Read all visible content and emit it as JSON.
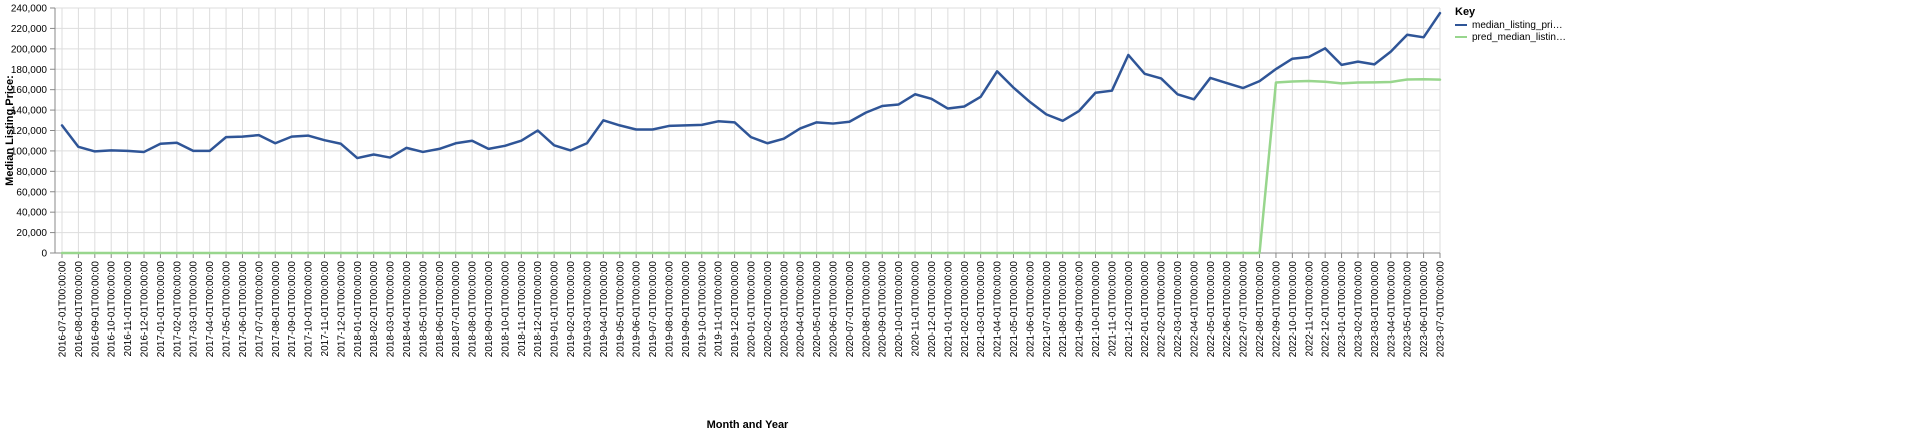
{
  "chart_data": {
    "type": "line",
    "xlabel": "Month and Year",
    "ylabel": "Median Listing Price:",
    "ylim": [
      0,
      240000
    ],
    "y_ticks": [
      0,
      20000,
      40000,
      60000,
      80000,
      100000,
      120000,
      140000,
      160000,
      180000,
      200000,
      220000,
      240000
    ],
    "y_tick_labels": [
      "0",
      "20,000",
      "40,000",
      "60,000",
      "80,000",
      "100,000",
      "120,000",
      "140,000",
      "160,000",
      "180,000",
      "200,000",
      "220,000",
      "240,000"
    ],
    "grid": true,
    "legend": {
      "title": "Key",
      "placement": "top-right"
    },
    "categories": [
      "2016-07-01T00:00:00",
      "2016-08-01T00:00:00",
      "2016-09-01T00:00:00",
      "2016-10-01T00:00:00",
      "2016-11-01T00:00:00",
      "2016-12-01T00:00:00",
      "2017-01-01T00:00:00",
      "2017-02-01T00:00:00",
      "2017-03-01T00:00:00",
      "2017-04-01T00:00:00",
      "2017-05-01T00:00:00",
      "2017-06-01T00:00:00",
      "2017-07-01T00:00:00",
      "2017-08-01T00:00:00",
      "2017-09-01T00:00:00",
      "2017-10-01T00:00:00",
      "2017-11-01T00:00:00",
      "2017-12-01T00:00:00",
      "2018-01-01T00:00:00",
      "2018-02-01T00:00:00",
      "2018-03-01T00:00:00",
      "2018-04-01T00:00:00",
      "2018-05-01T00:00:00",
      "2018-06-01T00:00:00",
      "2018-07-01T00:00:00",
      "2018-08-01T00:00:00",
      "2018-09-01T00:00:00",
      "2018-10-01T00:00:00",
      "2018-11-01T00:00:00",
      "2018-12-01T00:00:00",
      "2019-01-01T00:00:00",
      "2019-02-01T00:00:00",
      "2019-03-01T00:00:00",
      "2019-04-01T00:00:00",
      "2019-05-01T00:00:00",
      "2019-06-01T00:00:00",
      "2019-07-01T00:00:00",
      "2019-08-01T00:00:00",
      "2019-09-01T00:00:00",
      "2019-10-01T00:00:00",
      "2019-11-01T00:00:00",
      "2019-12-01T00:00:00",
      "2020-01-01T00:00:00",
      "2020-02-01T00:00:00",
      "2020-03-01T00:00:00",
      "2020-04-01T00:00:00",
      "2020-05-01T00:00:00",
      "2020-06-01T00:00:00",
      "2020-07-01T00:00:00",
      "2020-08-01T00:00:00",
      "2020-09-01T00:00:00",
      "2020-10-01T00:00:00",
      "2020-11-01T00:00:00",
      "2020-12-01T00:00:00",
      "2021-01-01T00:00:00",
      "2021-02-01T00:00:00",
      "2021-03-01T00:00:00",
      "2021-04-01T00:00:00",
      "2021-05-01T00:00:00",
      "2021-06-01T00:00:00",
      "2021-07-01T00:00:00",
      "2021-08-01T00:00:00",
      "2021-09-01T00:00:00",
      "2021-10-01T00:00:00",
      "2021-11-01T00:00:00",
      "2021-12-01T00:00:00",
      "2022-01-01T00:00:00",
      "2022-02-01T00:00:00",
      "2022-03-01T00:00:00",
      "2022-04-01T00:00:00",
      "2022-05-01T00:00:00",
      "2022-06-01T00:00:00",
      "2022-07-01T00:00:00",
      "2022-08-01T00:00:00",
      "2022-09-01T00:00:00",
      "2022-10-01T00:00:00",
      "2022-11-01T00:00:00",
      "2022-12-01T00:00:00",
      "2023-01-01T00:00:00",
      "2023-02-01T00:00:00",
      "2023-03-01T00:00:00",
      "2023-04-01T00:00:00",
      "2023-05-01T00:00:00",
      "2023-06-01T00:00:00",
      "2023-07-01T00:00:00"
    ],
    "series": [
      {
        "name": "median_listing_pri…",
        "color": "#2f5597",
        "values": [
          125000,
          104000,
          99500,
          100500,
          100000,
          99000,
          107000,
          108000,
          100000,
          100000,
          113500,
          114000,
          115500,
          107500,
          114000,
          115000,
          110500,
          107000,
          93000,
          96500,
          93500,
          103000,
          99000,
          102000,
          107500,
          110000,
          102000,
          105000,
          110000,
          120000,
          105500,
          100500,
          107500,
          130000,
          125000,
          121000,
          121000,
          124500,
          125000,
          125500,
          129000,
          128000,
          113500,
          107500,
          112000,
          122000,
          128000,
          126800,
          128600,
          137500,
          144000,
          145500,
          155500,
          151000,
          141500,
          143500,
          153000,
          178000,
          162000,
          148000,
          135800,
          129500,
          139200,
          157000,
          159000,
          194000,
          175500,
          171000,
          155500,
          150500,
          171500,
          166500,
          161600,
          168400,
          180200,
          190300,
          192000,
          200500,
          184300,
          187500,
          184800,
          197300,
          213800,
          211300,
          235000
        ]
      },
      {
        "name": "pred_median_listin…",
        "color": "#98d68d",
        "values": [
          0,
          0,
          0,
          0,
          0,
          0,
          0,
          0,
          0,
          0,
          0,
          0,
          0,
          0,
          0,
          0,
          0,
          0,
          0,
          0,
          0,
          0,
          0,
          0,
          0,
          0,
          0,
          0,
          0,
          0,
          0,
          0,
          0,
          0,
          0,
          0,
          0,
          0,
          0,
          0,
          0,
          0,
          0,
          0,
          0,
          0,
          0,
          0,
          0,
          0,
          0,
          0,
          0,
          0,
          0,
          0,
          0,
          0,
          0,
          0,
          0,
          0,
          0,
          0,
          0,
          0,
          0,
          0,
          0,
          0,
          0,
          0,
          0,
          0,
          167000,
          168000,
          168500,
          167800,
          166200,
          167000,
          167200,
          167500,
          170000,
          170200,
          169800
        ]
      }
    ]
  }
}
